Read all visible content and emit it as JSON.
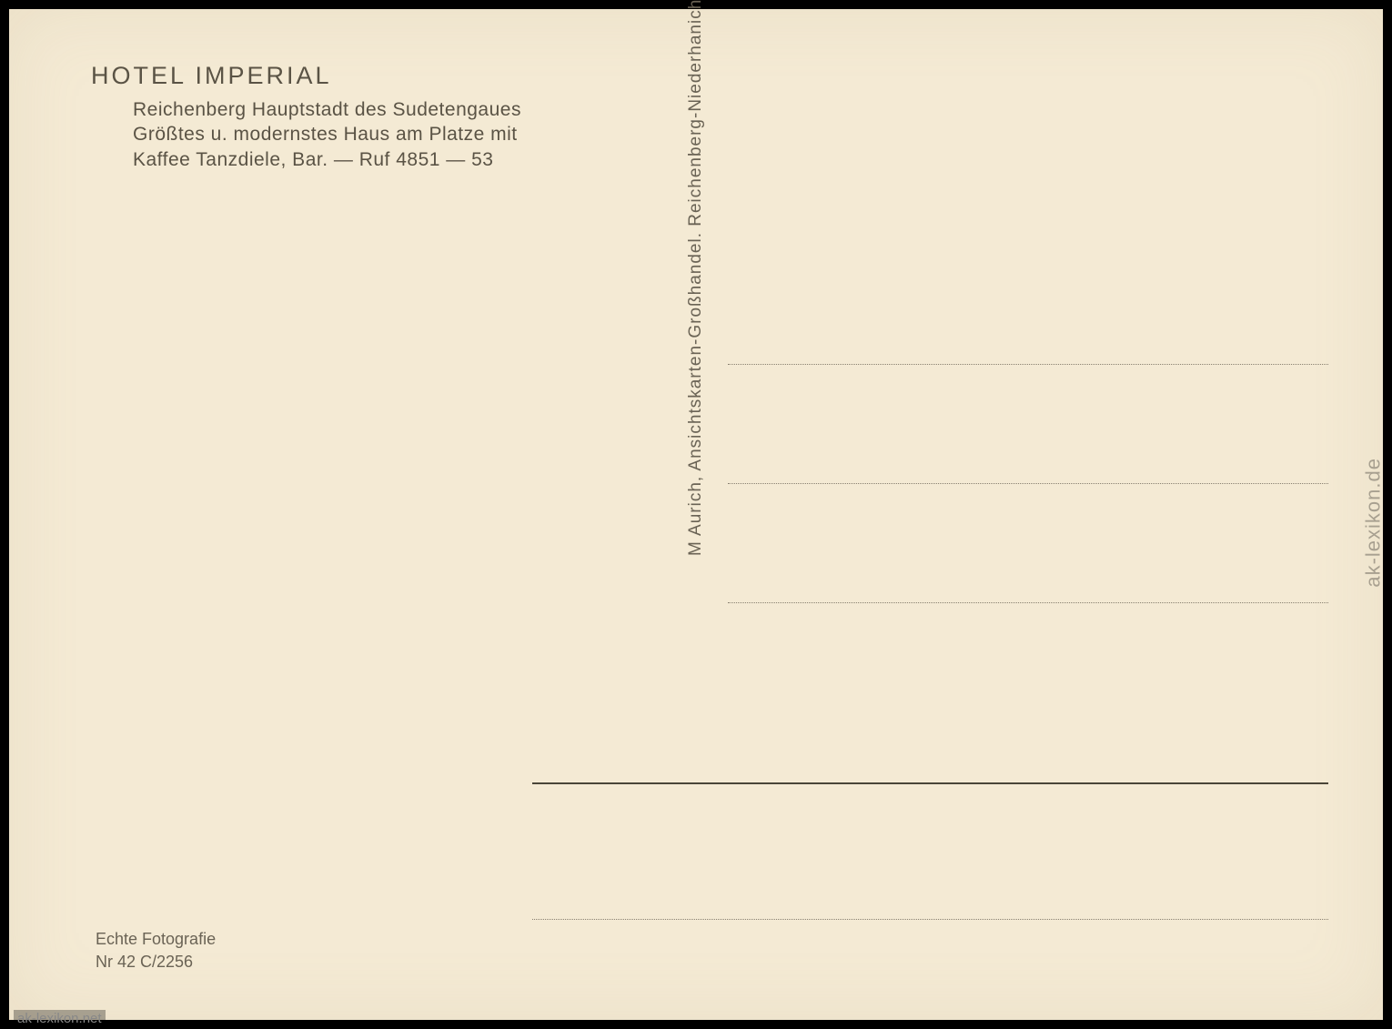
{
  "hotel": {
    "title": "HOTEL IMPERIAL",
    "line1": "Reichenberg Hauptstadt des Sudetengaues",
    "line2": "Größtes u. modernstes Haus am Platze mit",
    "line3": "Kaffee Tanzdiele, Bar.   —   Ruf 4851 — 53"
  },
  "publisher": "M Aurich,  Ansichtskarten-Großhandel.  Reichenberg-Niederhanichen",
  "footer": {
    "line1": "Echte Fotografie",
    "line2": "Nr 42    C/2256"
  },
  "watermark_side": "ak-lexikon.de",
  "watermark_bottom": "ak-lexikon.net",
  "colors": {
    "paper": "#f4ead4",
    "text": "#5a5345",
    "text_light": "#6a6355",
    "dotted": "#888070",
    "solid_line": "#4a4538"
  }
}
